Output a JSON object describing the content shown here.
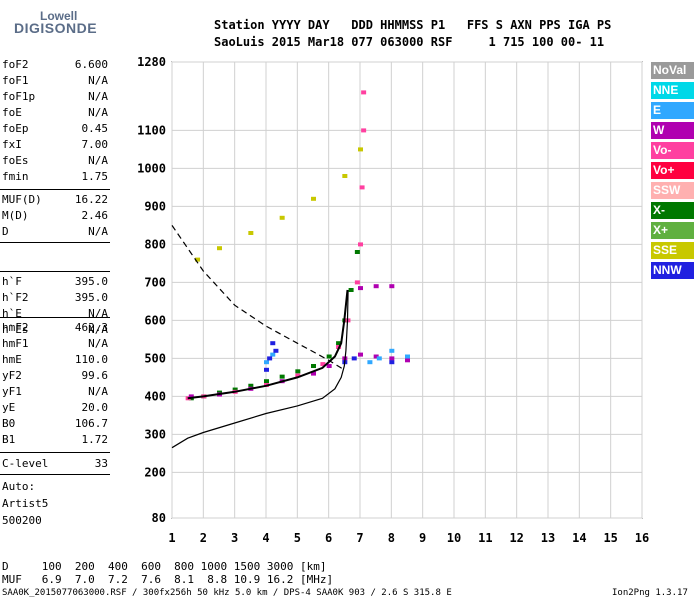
{
  "logo": {
    "line1": "Lowell",
    "line2": "DIGISONDE"
  },
  "header": {
    "line1": "Station YYYY DAY   DDD HHMMSS P1   FFS S AXN PPS IGA PS",
    "line2": "SaoLuis 2015 Mar18 077 063000 RSF     1 715 100 00- 11"
  },
  "params_group1": [
    {
      "name": "foF2",
      "value": "6.600"
    },
    {
      "name": "foF1",
      "value": "N/A"
    },
    {
      "name": "foF1p",
      "value": "N/A"
    },
    {
      "name": "foE",
      "value": "N/A"
    },
    {
      "name": "foEp",
      "value": "0.45"
    },
    {
      "name": "fxI",
      "value": "7.00"
    },
    {
      "name": "foEs",
      "value": "N/A"
    },
    {
      "name": "fmin",
      "value": "1.75"
    }
  ],
  "params_group2": [
    {
      "name": "MUF(D)",
      "value": "16.22"
    },
    {
      "name": "M(D)",
      "value": "2.46"
    },
    {
      "name": "D",
      "value": "N/A"
    }
  ],
  "params_group3": [
    {
      "name": "h`F",
      "value": "395.0"
    },
    {
      "name": "h`F2",
      "value": "395.0"
    },
    {
      "name": "h`E",
      "value": "N/A"
    },
    {
      "name": "h`Es",
      "value": "N/A"
    }
  ],
  "params_group4": [
    {
      "name": "hmF2",
      "value": "462.3"
    },
    {
      "name": "hmF1",
      "value": "N/A"
    },
    {
      "name": "hmE",
      "value": "110.0"
    },
    {
      "name": "yF2",
      "value": "99.6"
    },
    {
      "name": "yF1",
      "value": "N/A"
    },
    {
      "name": "yE",
      "value": "20.0"
    },
    {
      "name": "B0",
      "value": "106.7"
    },
    {
      "name": "B1",
      "value": "1.72"
    }
  ],
  "params_group5": [
    {
      "name": "C-level",
      "value": "33"
    }
  ],
  "autoscale": {
    "line1": "Auto:",
    "line2": "Artist5",
    "line3": "500200"
  },
  "legend": [
    {
      "label": "NoVal",
      "color": "#9a9a9a"
    },
    {
      "label": "NNE",
      "color": "#00d8e8"
    },
    {
      "label": "E",
      "color": "#30a8ff"
    },
    {
      "label": "W",
      "color": "#b000b0"
    },
    {
      "label": "Vo-",
      "color": "#ff40a0"
    },
    {
      "label": "Vo+",
      "color": "#ff0040"
    },
    {
      "label": "SSW",
      "color": "#ffb0b0"
    },
    {
      "label": "X-",
      "color": "#007800"
    },
    {
      "label": "X+",
      "color": "#60b040"
    },
    {
      "label": "SSE",
      "color": "#c8c800"
    },
    {
      "label": "NNW",
      "color": "#2020e0"
    }
  ],
  "bottom": {
    "row_d": "D     100  200  400  600  800 1000 1500 3000 [km]",
    "row_muf": "MUF   6.9  7.0  7.2  7.6  8.1  8.8 10.9 16.2 [MHz]",
    "footer_left": "SAA0K_2015077063000.RSF / 300fx256h 50 kHz 5.0 km / DPS-4 SAA0K 903 / 2.6 S 315.8 E",
    "footer_right": "Ion2Png 1.3.17"
  },
  "chart_data": {
    "type": "scatter",
    "title": "",
    "xlabel": "",
    "ylabel": "",
    "xlim": [
      1,
      16
    ],
    "ylim": [
      80,
      1280
    ],
    "x_ticks": [
      1,
      2,
      3,
      4,
      5,
      6,
      7,
      8,
      9,
      10,
      11,
      12,
      13,
      14,
      15,
      16
    ],
    "y_ticks": [
      80,
      200,
      300,
      400,
      500,
      600,
      700,
      800,
      900,
      1000,
      1100,
      1280
    ],
    "grid": true,
    "legend_position": "right",
    "series": [
      {
        "name": "X-",
        "color": "#007800",
        "points": [
          [
            1.6,
            395
          ],
          [
            2,
            400
          ],
          [
            2.5,
            410
          ],
          [
            3,
            418
          ],
          [
            3.5,
            428
          ],
          [
            4,
            440
          ],
          [
            4.5,
            452
          ],
          [
            5,
            466
          ],
          [
            5.5,
            480
          ],
          [
            6,
            505
          ],
          [
            6.3,
            540
          ],
          [
            6.5,
            600
          ],
          [
            6.7,
            680
          ],
          [
            6.9,
            780
          ]
        ]
      },
      {
        "name": "Vo-",
        "color": "#ff40a0",
        "points": [
          [
            1.5,
            395
          ],
          [
            2,
            400
          ],
          [
            3,
            412
          ],
          [
            4,
            430
          ],
          [
            5,
            455
          ],
          [
            5.8,
            485
          ],
          [
            6.3,
            530
          ],
          [
            6.6,
            600
          ],
          [
            6.9,
            700
          ],
          [
            7,
            800
          ],
          [
            7.05,
            950
          ],
          [
            7.1,
            1100
          ],
          [
            7.1,
            1200
          ]
        ]
      },
      {
        "name": "W",
        "color": "#b000b0",
        "points": [
          [
            1.6,
            400
          ],
          [
            2.5,
            405
          ],
          [
            3.5,
            420
          ],
          [
            4.5,
            440
          ],
          [
            5.5,
            460
          ],
          [
            6,
            480
          ],
          [
            6.5,
            500
          ],
          [
            7,
            510
          ],
          [
            7.5,
            505
          ],
          [
            8,
            500
          ],
          [
            8.5,
            495
          ],
          [
            7,
            685
          ],
          [
            7.5,
            690
          ],
          [
            8,
            690
          ]
        ]
      },
      {
        "name": "SSE",
        "color": "#c8c800",
        "points": [
          [
            1.8,
            760
          ],
          [
            2.5,
            790
          ],
          [
            3.5,
            830
          ],
          [
            4.5,
            870
          ],
          [
            5.5,
            920
          ],
          [
            6.5,
            980
          ],
          [
            7,
            1050
          ]
        ]
      },
      {
        "name": "E",
        "color": "#30a8ff",
        "points": [
          [
            7.3,
            490
          ],
          [
            7.6,
            500
          ],
          [
            8,
            520
          ],
          [
            8.5,
            505
          ],
          [
            4,
            490
          ],
          [
            4.2,
            510
          ]
        ]
      },
      {
        "name": "NNW",
        "color": "#2020e0",
        "points": [
          [
            4,
            470
          ],
          [
            4.1,
            500
          ],
          [
            4.3,
            520
          ],
          [
            4.2,
            540
          ],
          [
            6.5,
            490
          ],
          [
            6.8,
            500
          ],
          [
            8,
            490
          ]
        ]
      }
    ],
    "trace_lines": [
      {
        "name": "profile",
        "style": "solid",
        "points": [
          [
            1,
            265
          ],
          [
            1.5,
            290
          ],
          [
            2,
            305
          ],
          [
            3,
            330
          ],
          [
            4,
            355
          ],
          [
            5,
            375
          ],
          [
            5.8,
            395
          ],
          [
            6.2,
            420
          ],
          [
            6.4,
            450
          ],
          [
            6.5,
            480
          ],
          [
            6.55,
            520
          ],
          [
            6.6,
            600
          ],
          [
            6.62,
            680
          ]
        ]
      },
      {
        "name": "trace",
        "style": "solid",
        "points": [
          [
            1.5,
            395
          ],
          [
            2,
            400
          ],
          [
            3,
            412
          ],
          [
            4,
            428
          ],
          [
            5,
            450
          ],
          [
            5.8,
            475
          ],
          [
            6.2,
            505
          ],
          [
            6.4,
            540
          ],
          [
            6.5,
            600
          ],
          [
            6.6,
            680
          ]
        ]
      },
      {
        "name": "muf-curve",
        "style": "dashed",
        "points": [
          [
            1,
            850
          ],
          [
            2,
            730
          ],
          [
            3,
            640
          ],
          [
            4,
            585
          ],
          [
            5,
            540
          ],
          [
            5.5,
            518
          ],
          [
            6,
            495
          ],
          [
            6.5,
            470
          ]
        ]
      }
    ]
  }
}
